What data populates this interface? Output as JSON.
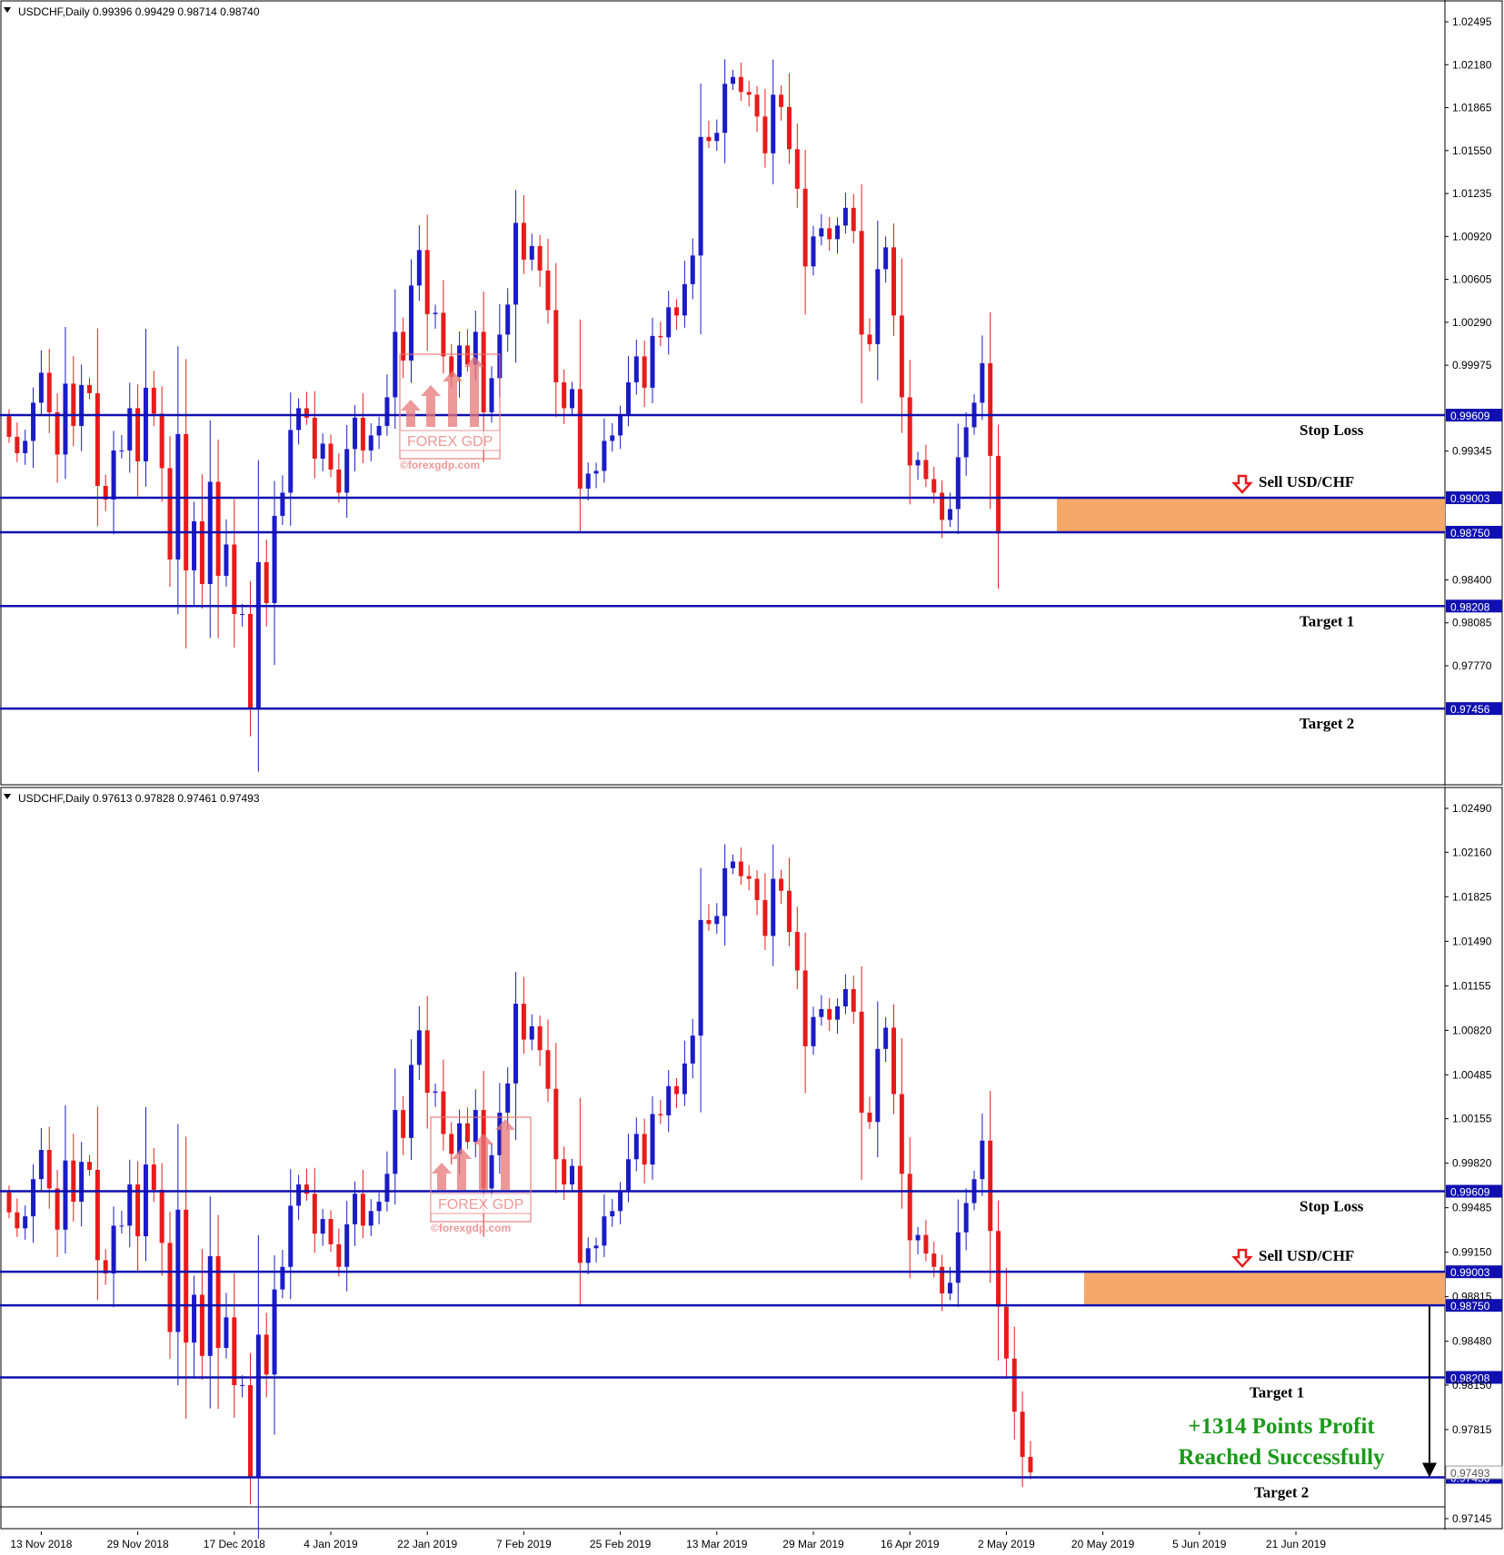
{
  "chart_data": [
    {
      "type": "candlestick",
      "symbol": "USDCHF,Daily",
      "ohlc_header": "0.99396 0.99429 0.98714 0.98740",
      "y_ticks": [
        "1.02495",
        "1.02180",
        "1.01865",
        "1.01550",
        "1.01235",
        "1.00920",
        "1.00605",
        "1.00290",
        "0.99975",
        "0.99345",
        "0.98400",
        "0.98085",
        "0.97770"
      ],
      "ylim": [
        0.9712,
        1.0266
      ],
      "levels": [
        {
          "label": "Stop Loss",
          "price": 0.99609,
          "tag": "0.99609"
        },
        {
          "label": "Sell USD/CHF",
          "price": 0.99003,
          "tag": "0.99003"
        },
        {
          "label": "",
          "price": 0.9875,
          "tag": "0.98750"
        },
        {
          "label": "Target 1",
          "price": 0.98208,
          "tag": "0.98208"
        },
        {
          "label": "Target 2",
          "price": 0.97456,
          "tag": "0.97456"
        }
      ],
      "sell_zone": [
        0.9875,
        0.99003
      ],
      "watermark": {
        "brand": "FOREX GDP",
        "site": "©forexgdp.com"
      },
      "closes": [
        0.9945,
        0.9933,
        0.9942,
        0.997,
        0.9992,
        0.9963,
        0.9932,
        0.9984,
        0.9953,
        0.9983,
        0.9977,
        0.9909,
        0.9899,
        0.9935,
        0.9935,
        0.9966,
        0.9927,
        0.9981,
        0.9962,
        0.9922,
        0.9855,
        0.9947,
        0.9847,
        0.9883,
        0.9837,
        0.9912,
        0.9843,
        0.9866,
        0.9815,
        0.9815,
        0.9746,
        0.9853,
        0.9823,
        0.9887,
        0.9904,
        0.995,
        0.9966,
        0.9959,
        0.9929,
        0.994,
        0.9921,
        0.9904,
        0.9936,
        0.9959,
        0.9935,
        0.9946,
        0.9953,
        0.9974,
        1.0022,
        1.0001,
        1.0056,
        1.0082,
        1.0035,
        1.0036,
        1.0004,
        0.9989,
        1.0012,
        0.9998,
        1.0022,
        0.9963,
        0.9988,
        1.002,
        1.0042,
        1.0102,
        1.0075,
        1.0085,
        1.0067,
        1.0038,
        0.9985,
        0.9966,
        0.998,
        0.9907,
        0.9918,
        0.992,
        0.9942,
        0.9946,
        0.9961,
        0.9985,
        1.0004,
        0.9981,
        1.0019,
        1.0018,
        1.004,
        1.0034,
        1.0057,
        1.0078,
        1.0165,
        1.0162,
        1.0168,
        1.0204,
        1.0209,
        1.0198,
        1.0196,
        1.018,
        1.0153,
        1.0196,
        1.0187,
        1.0156,
        1.0127,
        1.007,
        1.0092,
        1.0098,
        1.009,
        1.01,
        1.0113,
        1.0096,
        1.002,
        1.0013,
        1.0068,
        1.0084,
        1.0034,
        0.9974,
        0.9924,
        0.9928,
        0.9914,
        0.9904,
        0.9884,
        0.9892,
        0.993,
        0.9952,
        0.997,
        0.9999,
        0.9931,
        0.9874
      ],
      "xaxis": {
        "labels": [
          "13 Nov 2018",
          "29 Nov 2018",
          "17 Dec 2018",
          "4 Jan 2019",
          "22 Jan 2019",
          "7 Feb 2019",
          "25 Feb 2019",
          "13 Mar 2019",
          "29 Mar 2019",
          "16 Apr 2019",
          "2 May 2019",
          "20 May 2019",
          "5 Jun 2019",
          "21 Jun 2019"
        ],
        "bar_index": [
          4,
          16,
          28,
          40,
          52,
          64,
          76,
          88,
          100,
          112,
          124,
          136,
          148,
          160
        ]
      },
      "grid": false
    },
    {
      "type": "candlestick",
      "symbol": "USDCHF,Daily",
      "ohlc_header": "0.97613 0.97828 0.97461 0.97493",
      "y_ticks": [
        "1.02490",
        "1.02160",
        "1.01825",
        "1.01490",
        "1.01155",
        "1.00820",
        "1.00485",
        "1.00155",
        "0.99820",
        "0.99485",
        "0.99150",
        "0.98815",
        "0.98480",
        "0.98150",
        "0.97815",
        "0.97145"
      ],
      "ylim": [
        0.9701,
        1.0262
      ],
      "levels": [
        {
          "label": "Stop Loss",
          "price": 0.99609,
          "tag": "0.99609"
        },
        {
          "label": "Sell USD/CHF",
          "price": 0.99003,
          "tag": "0.99003"
        },
        {
          "label": "",
          "price": 0.9875,
          "tag": "0.98750"
        },
        {
          "label": "Target 1",
          "price": 0.98208,
          "tag": "0.98208"
        },
        {
          "label": "Target 2",
          "price": 0.97456,
          "tag": "0.97456"
        }
      ],
      "hidden_tag": "0.97493",
      "sell_zone": [
        0.9875,
        0.99003
      ],
      "watermark": {
        "brand": "FOREX GDP",
        "site": "©forexgdp.com"
      },
      "profit_text": [
        "+1314 Points Profit",
        "Reached Successfully"
      ],
      "closes": [
        0.9945,
        0.9933,
        0.9942,
        0.997,
        0.9992,
        0.9963,
        0.9932,
        0.9984,
        0.9953,
        0.9983,
        0.9977,
        0.9909,
        0.9899,
        0.9935,
        0.9935,
        0.9966,
        0.9927,
        0.9981,
        0.9962,
        0.9922,
        0.9855,
        0.9947,
        0.9847,
        0.9883,
        0.9837,
        0.9912,
        0.9843,
        0.9866,
        0.9815,
        0.9815,
        0.9746,
        0.9853,
        0.9823,
        0.9887,
        0.9904,
        0.995,
        0.9966,
        0.9959,
        0.9929,
        0.994,
        0.9921,
        0.9904,
        0.9936,
        0.9959,
        0.9935,
        0.9946,
        0.9953,
        0.9974,
        1.0022,
        1.0001,
        1.0056,
        1.0082,
        1.0035,
        1.0036,
        1.0004,
        0.9989,
        1.0012,
        0.9998,
        1.0022,
        0.9963,
        0.9988,
        1.002,
        1.0042,
        1.0102,
        1.0075,
        1.0085,
        1.0067,
        1.0038,
        0.9985,
        0.9966,
        0.998,
        0.9907,
        0.9918,
        0.992,
        0.9942,
        0.9946,
        0.9961,
        0.9985,
        1.0004,
        0.9981,
        1.0019,
        1.0018,
        1.004,
        1.0034,
        1.0057,
        1.0078,
        1.0165,
        1.0162,
        1.0168,
        1.0204,
        1.0209,
        1.0198,
        1.0196,
        1.018,
        1.0153,
        1.0196,
        1.0187,
        1.0156,
        1.0127,
        1.007,
        1.0092,
        1.0098,
        1.009,
        1.01,
        1.0113,
        1.0096,
        1.002,
        1.0013,
        1.0068,
        1.0084,
        1.0034,
        0.9974,
        0.9924,
        0.9928,
        0.9914,
        0.9904,
        0.9884,
        0.9892,
        0.993,
        0.9952,
        0.997,
        0.9999,
        0.9931,
        0.9874,
        0.9835,
        0.9795,
        0.9761,
        0.97493
      ],
      "xaxis": {
        "labels": [
          "13 Nov 2018",
          "29 Nov 2018",
          "17 Dec 2018",
          "4 Jan 2019",
          "22 Jan 2019",
          "7 Feb 2019",
          "25 Feb 2019",
          "13 Mar 2019",
          "29 Mar 2019",
          "16 Apr 2019",
          "2 May 2019",
          "20 May 2019",
          "5 Jun 2019",
          "21 Jun 2019"
        ],
        "bar_index": [
          4,
          16,
          28,
          40,
          52,
          64,
          76,
          88,
          100,
          112,
          124,
          136,
          148,
          160
        ]
      },
      "grid": false
    }
  ]
}
